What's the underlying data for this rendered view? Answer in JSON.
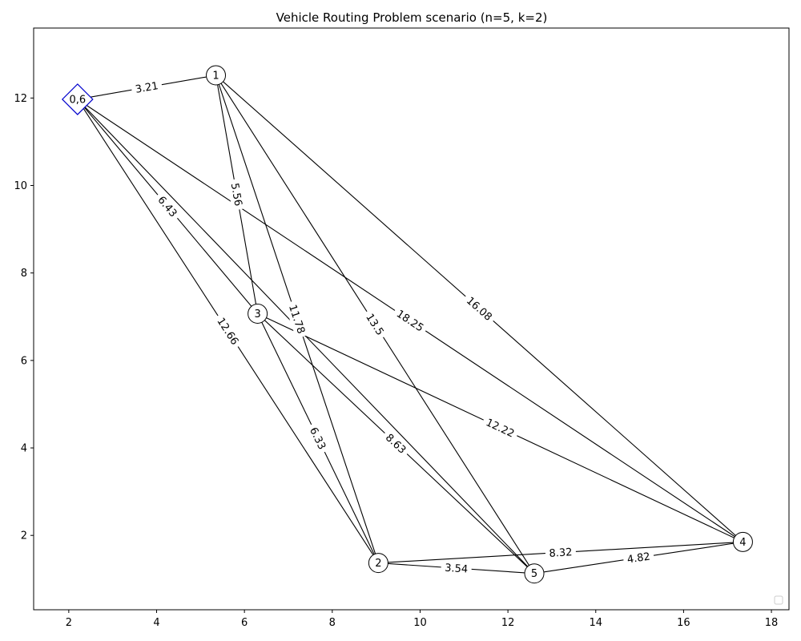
{
  "title": "Vehicle Routing Problem scenario (n=5, k=2)",
  "chart_data": {
    "type": "graph",
    "title": "Vehicle Routing Problem scenario (n=5, k=2)",
    "xlabel": "",
    "ylabel": "",
    "xlim": [
      1.2,
      18.4
    ],
    "ylim": [
      0.3,
      13.6
    ],
    "xticks": [
      2,
      4,
      6,
      8,
      10,
      12,
      14,
      16,
      18
    ],
    "yticks": [
      2,
      4,
      6,
      8,
      10,
      12
    ],
    "grid": false,
    "legend": "lower-right (empty)",
    "depot_color": "#0000cc",
    "nodes": [
      {
        "id": "0,6",
        "x": 2.2,
        "y": 11.97,
        "shape": "diamond"
      },
      {
        "id": "1",
        "x": 5.35,
        "y": 12.52,
        "shape": "circle"
      },
      {
        "id": "2",
        "x": 9.05,
        "y": 1.37,
        "shape": "circle"
      },
      {
        "id": "3",
        "x": 6.3,
        "y": 7.07,
        "shape": "circle"
      },
      {
        "id": "4",
        "x": 17.35,
        "y": 1.85,
        "shape": "circle"
      },
      {
        "id": "5",
        "x": 12.6,
        "y": 1.13,
        "shape": "circle"
      }
    ],
    "edges": [
      {
        "source": "0,6",
        "target": "1",
        "weight": "3.21",
        "t": 0.5
      },
      {
        "source": "0,6",
        "target": "3",
        "weight": "6.43",
        "t": 0.5
      },
      {
        "source": "0,6",
        "target": "2",
        "weight": "12.66",
        "t": 0.5
      },
      {
        "source": "0,6",
        "target": "4",
        "weight": "18.25",
        "t": 0.5
      },
      {
        "source": "0,6",
        "target": "5",
        "weight": "",
        "t": 0.5
      },
      {
        "source": "1",
        "target": "3",
        "weight": "5.56",
        "t": 0.5
      },
      {
        "source": "1",
        "target": "2",
        "weight": "11.78",
        "t": 0.5
      },
      {
        "source": "1",
        "target": "5",
        "weight": "13.5",
        "t": 0.5
      },
      {
        "source": "1",
        "target": "4",
        "weight": "16.08",
        "t": 0.5
      },
      {
        "source": "3",
        "target": "2",
        "weight": "6.33",
        "t": 0.5
      },
      {
        "source": "3",
        "target": "5",
        "weight": "8.63",
        "t": 0.5
      },
      {
        "source": "3",
        "target": "4",
        "weight": "12.22",
        "t": 0.5
      },
      {
        "source": "2",
        "target": "5",
        "weight": "3.54",
        "t": 0.5
      },
      {
        "source": "2",
        "target": "4",
        "weight": "8.32",
        "t": 0.5
      },
      {
        "source": "5",
        "target": "4",
        "weight": "4.82",
        "t": 0.5
      }
    ]
  }
}
